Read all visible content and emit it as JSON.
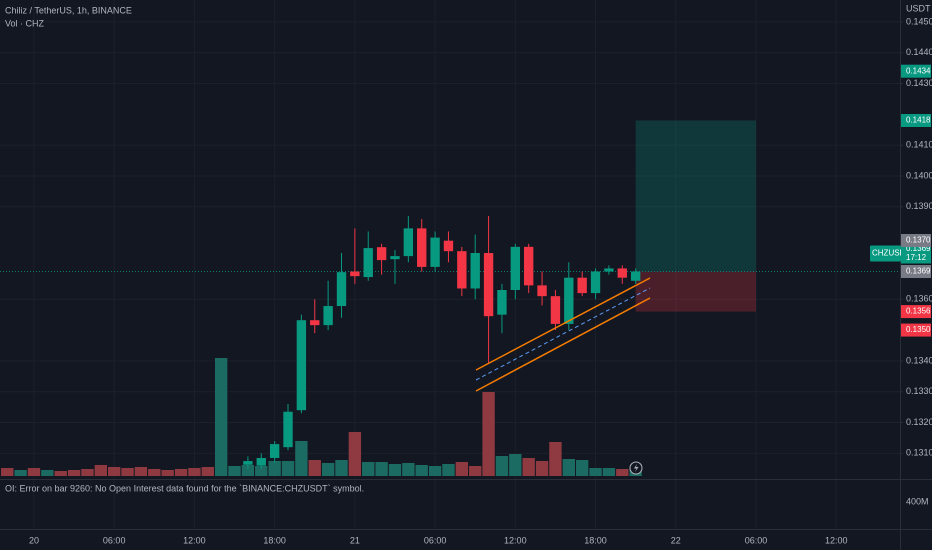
{
  "chart_data": {
    "type": "candlestick",
    "title": "Chiliz / TetherUS, 1h, BINANCE",
    "axis_unit": "USDT",
    "x": [
      16,
      17,
      18,
      19,
      20,
      21,
      22,
      23,
      24,
      25,
      26,
      27,
      28,
      29,
      30,
      31,
      32,
      33,
      34,
      35,
      36,
      37,
      38,
      39,
      40,
      41,
      42,
      43,
      44,
      45
    ],
    "open": [
      0.13063,
      0.1306,
      0.13085,
      0.1312,
      0.1324,
      0.13532,
      0.13516,
      0.13578,
      0.1369,
      0.13672,
      0.13769,
      0.1373,
      0.1374,
      0.1383,
      0.13705,
      0.1379,
      0.13756,
      0.13635,
      0.1375,
      0.1355,
      0.1363,
      0.1377,
      0.13645,
      0.1361,
      0.1352,
      0.1367,
      0.1362,
      0.1369,
      0.137,
      0.1366
    ],
    "high": [
      0.1309,
      0.131,
      0.1314,
      0.1326,
      0.1355,
      0.136,
      0.1366,
      0.1375,
      0.1383,
      0.1382,
      0.1378,
      0.1376,
      0.1387,
      0.1386,
      0.1382,
      0.1382,
      0.1377,
      0.1381,
      0.1387,
      0.1365,
      0.1378,
      0.1378,
      0.1369,
      0.1363,
      0.1372,
      0.1369,
      0.137,
      0.1371,
      0.1371,
      0.137
    ],
    "low": [
      0.1305,
      0.1305,
      0.1307,
      0.1311,
      0.1323,
      0.1349,
      0.135,
      0.1354,
      0.1365,
      0.1366,
      0.1368,
      0.1365,
      0.1372,
      0.1369,
      0.1369,
      0.1372,
      0.1361,
      0.136,
      0.1339,
      0.1349,
      0.136,
      0.1362,
      0.1358,
      0.135,
      0.135,
      0.1361,
      0.136,
      0.1368,
      0.1365,
      0.1365
    ],
    "close": [
      0.13075,
      0.13085,
      0.1313,
      0.13235,
      0.13532,
      0.13516,
      0.13578,
      0.13688,
      0.13675,
      0.13766,
      0.13727,
      0.1374,
      0.1383,
      0.13705,
      0.138,
      0.13756,
      0.13635,
      0.1375,
      0.13545,
      0.1363,
      0.1377,
      0.13645,
      0.1361,
      0.1352,
      0.1367,
      0.1362,
      0.1369,
      0.137,
      0.1367,
      0.1369
    ],
    "up_color": "#089981",
    "down_color": "#f23645",
    "volume": {
      "name": "Vol · CHZ",
      "x": [
        -2,
        -1,
        0,
        1,
        2,
        3,
        4,
        5,
        6,
        7,
        8,
        9,
        10,
        11,
        12,
        13,
        14,
        15,
        16,
        17,
        18,
        19,
        20,
        21,
        22,
        23,
        24,
        25,
        26,
        27,
        28,
        29,
        30,
        31,
        32,
        33,
        34,
        35,
        36,
        37,
        38,
        39,
        40,
        41,
        42,
        43,
        44,
        45
      ],
      "values": [
        8,
        6,
        8,
        6,
        5,
        6,
        7,
        11,
        9,
        8,
        9,
        7,
        6,
        7,
        8,
        9,
        118,
        10,
        11,
        10,
        15,
        15,
        35,
        16,
        13,
        16,
        44,
        14,
        14,
        12,
        13,
        11,
        10,
        12,
        14,
        10,
        84,
        20,
        22,
        18,
        15,
        34,
        17,
        16,
        8,
        8,
        7,
        7
      ],
      "colors": [
        "#8f3a40",
        "#1c6b62",
        "#8f3a40",
        "#1c6b62",
        "#8f3a40",
        "#8f3a40",
        "#8f3a40",
        "#8f3a40",
        "#8f3a40",
        "#8f3a40",
        "#8f3a40",
        "#8f3a40",
        "#8f3a40",
        "#8f3a40",
        "#8f3a40",
        "#8f3a40",
        "#1c6b62",
        "#1c6b62",
        "#1c6b62",
        "#1c6b62",
        "#1c6b62",
        "#1c6b62",
        "#1c6b62",
        "#8f3a40",
        "#1c6b62",
        "#1c6b62",
        "#8f3a40",
        "#1c6b62",
        "#1c6b62",
        "#1c6b62",
        "#1c6b62",
        "#1c6b62",
        "#1c6b62",
        "#1c6b62",
        "#8f3a40",
        "#8f3a40",
        "#8f3a40",
        "#1c6b62",
        "#1c6b62",
        "#8f3a40",
        "#8f3a40",
        "#8f3a40",
        "#1c6b62",
        "#1c6b62",
        "#1c6b62",
        "#1c6b62",
        "#8f3a40",
        "#1c6b62"
      ]
    },
    "xlim": [
      -2.54,
      64.77
    ],
    "xticks": [
      {
        "value": 0,
        "label": "20"
      },
      {
        "value": 6,
        "label": "06:00"
      },
      {
        "value": 12,
        "label": "12:00"
      },
      {
        "value": 18,
        "label": "18:00"
      },
      {
        "value": 24,
        "label": "21"
      },
      {
        "value": 30,
        "label": "06:00"
      },
      {
        "value": 36,
        "label": "12:00"
      },
      {
        "value": 42,
        "label": "18:00"
      },
      {
        "value": 48,
        "label": "22"
      },
      {
        "value": 54,
        "label": "06:00"
      },
      {
        "value": 60,
        "label": "12:00"
      }
    ],
    "ylim": [
      0.1302,
      0.14571
    ],
    "yticks": [
      {
        "value": 0.145,
        "label": "0.1450"
      },
      {
        "value": 0.144,
        "label": "0.1440"
      },
      {
        "value": 0.143,
        "label": "0.1430"
      },
      {
        "value": 0.141,
        "label": "0.1410"
      },
      {
        "value": 0.14,
        "label": "0.1400"
      },
      {
        "value": 0.139,
        "label": "0.1390"
      },
      {
        "value": 0.136,
        "label": "0.1360"
      },
      {
        "value": 0.134,
        "label": "0.1340"
      },
      {
        "value": 0.133,
        "label": "0.1330"
      },
      {
        "value": 0.132,
        "label": "0.1320"
      },
      {
        "value": 0.131,
        "label": "0.1310"
      }
    ],
    "grid": true,
    "price_labels": [
      {
        "value": 0.1434,
        "label": "0.1434",
        "color": "#089981"
      },
      {
        "value": 0.1418,
        "label": "0.1418",
        "color": "#089981"
      },
      {
        "value": 0.137,
        "label": "0.1370",
        "color": "#787b86"
      },
      {
        "value": 0.1369,
        "label": "0.1369",
        "color": "#787b86"
      },
      {
        "value": 0.1356,
        "label": "0.1356",
        "color": "#f23645"
      },
      {
        "value": 0.135,
        "label": "0.1350",
        "color": "#f23645"
      }
    ],
    "last": {
      "symbol": "CHZUSDT",
      "value": 0.1369,
      "label": "0.1369",
      "countdown": "17:12",
      "color": "#089981"
    },
    "position": {
      "entry": 0.1369,
      "target": 0.1418,
      "stop": 0.1356,
      "x_start": 45,
      "x_end": 54
    },
    "oi_message": "OI: Error on bar 9260: No Open Interest data found for the `BINANCE:CHZUSDT` symbol.",
    "oi_axis_label": "400M"
  }
}
